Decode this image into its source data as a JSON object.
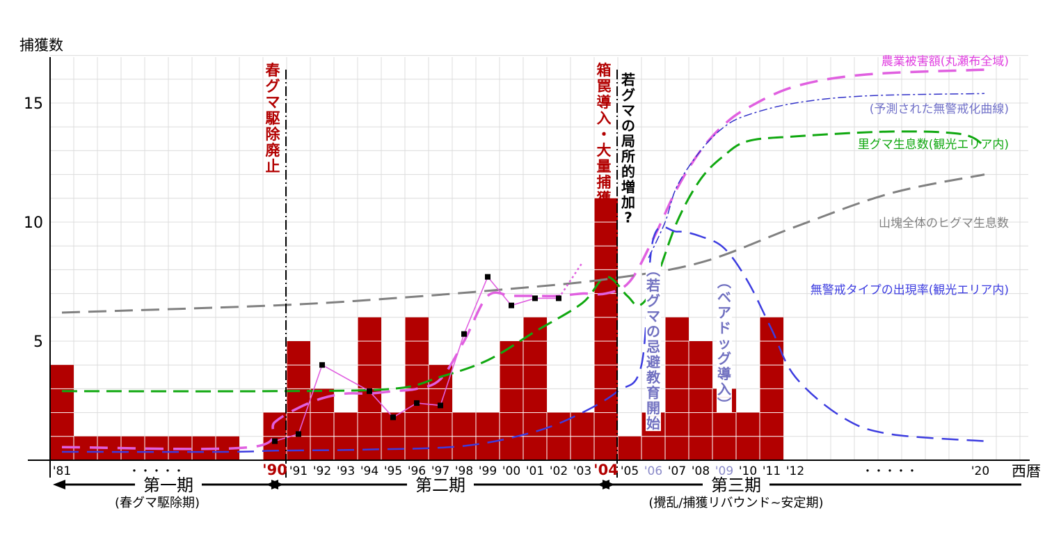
{
  "chart_data": {
    "type": "bar",
    "ylabel": "捕獲数",
    "xlabel": "西暦",
    "ylim": [
      0,
      17
    ],
    "yticks": [
      5,
      10,
      15
    ],
    "grid": true,
    "x": [
      1981,
      1982,
      1983,
      1984,
      1985,
      1986,
      1987,
      1988,
      1989,
      1990,
      1991,
      1992,
      1993,
      1994,
      1995,
      1996,
      1997,
      1998,
      1999,
      2000,
      2001,
      2002,
      2003,
      2004,
      2005,
      2006,
      2007,
      2008,
      2009,
      2010,
      2011
    ],
    "catches": [
      4,
      1,
      1,
      1,
      1,
      1,
      1,
      1,
      0,
      2,
      5,
      3,
      2,
      6,
      2,
      6,
      4,
      2,
      2,
      5,
      6,
      2,
      2,
      11,
      1,
      2,
      6,
      5,
      3,
      2,
      6
    ],
    "xtick_labels": [
      {
        "year": 1981,
        "label": "'81",
        "color": "#000000"
      },
      {
        "year": 1990,
        "label": "'90",
        "color": "#b20000"
      },
      {
        "year": 1991,
        "label": "'91",
        "color": "#000000"
      },
      {
        "year": 1992,
        "label": "'92",
        "color": "#000000"
      },
      {
        "year": 1993,
        "label": "'93",
        "color": "#000000"
      },
      {
        "year": 1994,
        "label": "'94",
        "color": "#000000"
      },
      {
        "year": 1995,
        "label": "'95",
        "color": "#000000"
      },
      {
        "year": 1996,
        "label": "'96",
        "color": "#000000"
      },
      {
        "year": 1997,
        "label": "'97",
        "color": "#000000"
      },
      {
        "year": 1998,
        "label": "'98",
        "color": "#000000"
      },
      {
        "year": 1999,
        "label": "'99",
        "color": "#000000"
      },
      {
        "year": 2000,
        "label": "'00",
        "color": "#000000"
      },
      {
        "year": 2001,
        "label": "'01",
        "color": "#000000"
      },
      {
        "year": 2002,
        "label": "'02",
        "color": "#000000"
      },
      {
        "year": 2003,
        "label": "'03",
        "color": "#000000"
      },
      {
        "year": 2004,
        "label": "'04",
        "color": "#b20000"
      },
      {
        "year": 2005,
        "label": "'05",
        "color": "#000000"
      },
      {
        "year": 2006,
        "label": "'06",
        "color": "#8a8ac8"
      },
      {
        "year": 2007,
        "label": "'07",
        "color": "#000000"
      },
      {
        "year": 2008,
        "label": "'08",
        "color": "#000000"
      },
      {
        "year": 2009,
        "label": "'09",
        "color": "#8a8ac8"
      },
      {
        "year": 2010,
        "label": "'10",
        "color": "#000000"
      },
      {
        "year": 2011,
        "label": "'11",
        "color": "#000000"
      },
      {
        "year": 2012,
        "label": "'12",
        "color": "#000000"
      },
      {
        "year": 2020,
        "label": "'20",
        "color": "#000000"
      }
    ],
    "ellipses": [
      {
        "year": 1985,
        "label": "・・・・・"
      },
      {
        "year": 2016,
        "label": "・・・・・"
      }
    ],
    "damage_observed": {
      "color": "#e060e0",
      "points": [
        [
          1990,
          0.8
        ],
        [
          1991,
          1.1
        ],
        [
          1992,
          4.0
        ],
        [
          1994,
          2.9
        ],
        [
          1995,
          1.8
        ],
        [
          1996,
          2.4
        ],
        [
          1997,
          2.3
        ],
        [
          1998,
          5.3
        ],
        [
          1999,
          7.7
        ],
        [
          2000,
          6.5
        ],
        [
          2001,
          6.8
        ],
        [
          2002,
          6.8
        ]
      ],
      "extension": [
        [
          2002,
          6.8
        ],
        [
          2003,
          8.3
        ]
      ]
    },
    "series": [
      {
        "name": "農業被害額(丸瀬布全域)",
        "color": "#e060e0",
        "width": 3.5,
        "dash": "26,14",
        "points": [
          [
            1981,
            0.55
          ],
          [
            1989,
            0.55
          ],
          [
            1990,
            1.6
          ],
          [
            1991,
            2.2
          ],
          [
            1992,
            2.6
          ],
          [
            1993,
            2.8
          ],
          [
            1994,
            2.8
          ],
          [
            1995,
            2.9
          ],
          [
            1996,
            3.0
          ],
          [
            1997,
            3.4
          ],
          [
            1998,
            5.0
          ],
          [
            1999,
            6.9
          ],
          [
            2000,
            6.9
          ],
          [
            2001,
            6.9
          ],
          [
            2002,
            6.9
          ],
          [
            2003,
            7.0
          ],
          [
            2004,
            7.0
          ],
          [
            2005,
            7.5
          ],
          [
            2006,
            9.3
          ],
          [
            2007,
            11.4
          ],
          [
            2008,
            13.0
          ],
          [
            2009,
            14.1
          ],
          [
            2010,
            14.8
          ],
          [
            2012,
            15.7
          ],
          [
            2015,
            16.2
          ],
          [
            2020,
            16.4
          ]
        ]
      },
      {
        "name": "(予測された無警戒化曲線)",
        "color": "#3030c8",
        "width": 1.5,
        "dash": "12,4,3,4",
        "points": [
          [
            2005.8,
            8.5
          ],
          [
            2006.5,
            10.0
          ],
          [
            2007,
            11.5
          ],
          [
            2008,
            13.0
          ],
          [
            2009,
            14.0
          ],
          [
            2010,
            14.5
          ],
          [
            2012,
            15.0
          ],
          [
            2015,
            15.3
          ],
          [
            2020,
            15.4
          ]
        ]
      },
      {
        "name": "里グマ生息数(観光エリア内)",
        "color": "#10a810",
        "width": 3,
        "dash": "22,10",
        "points": [
          [
            1981,
            2.9
          ],
          [
            1990,
            2.9
          ],
          [
            1995,
            3.0
          ],
          [
            1997,
            3.5
          ],
          [
            1999,
            4.2
          ],
          [
            2001,
            5.4
          ],
          [
            2003,
            6.6
          ],
          [
            2004,
            7.7
          ],
          [
            2004.9,
            6.9
          ],
          [
            2005.4,
            6.5
          ],
          [
            2006,
            7.3
          ],
          [
            2007,
            10.0
          ],
          [
            2008,
            11.8
          ],
          [
            2009,
            12.8
          ],
          [
            2010,
            13.4
          ],
          [
            2012,
            13.6
          ],
          [
            2016,
            13.8
          ],
          [
            2019,
            13.7
          ],
          [
            2020,
            13.2
          ]
        ]
      },
      {
        "name": "山塊全体のヒグマ生息数",
        "color": "#808080",
        "width": 3,
        "dash": "26,12",
        "points": [
          [
            1981,
            6.2
          ],
          [
            1990,
            6.5
          ],
          [
            1995,
            6.8
          ],
          [
            2000,
            7.2
          ],
          [
            2004,
            7.6
          ],
          [
            2008,
            8.3
          ],
          [
            2012,
            9.8
          ],
          [
            2016,
            11.2
          ],
          [
            2020,
            12.0
          ]
        ]
      },
      {
        "name": "無警戒タイプの出現率(観光エリア内)",
        "color": "#3c3ce0",
        "width": 2.5,
        "dash": "24,12",
        "points": [
          [
            1981,
            0.35
          ],
          [
            1988,
            0.35
          ],
          [
            1990,
            0.4
          ],
          [
            1994,
            0.45
          ],
          [
            1998,
            0.6
          ],
          [
            2001,
            1.2
          ],
          [
            2003,
            2.0
          ],
          [
            2004.5,
            2.9
          ],
          [
            2005.5,
            4.0
          ],
          [
            2006,
            9.3
          ],
          [
            2007,
            9.6
          ],
          [
            2008,
            9.4
          ],
          [
            2009,
            8.9
          ],
          [
            2010,
            7.5
          ],
          [
            2011,
            5.5
          ],
          [
            2012,
            3.5
          ],
          [
            2014,
            1.8
          ],
          [
            2016,
            1.1
          ],
          [
            2020,
            0.8
          ]
        ]
      }
    ],
    "series_labels": [
      {
        "text": "農業被害額(丸瀬布全域)",
        "color": "#e040e0",
        "y": 16.8
      },
      {
        "text": "(予測された無警戒化曲線)",
        "color": "#7070c8",
        "y": 14.8
      },
      {
        "text": "里グマ生息数(観光エリア内)",
        "color": "#10a810",
        "y": 13.3
      },
      {
        "text": "山塊全体のヒグマ生息数",
        "color": "#808080",
        "y": 10.0
      },
      {
        "text": "無警戒タイプの出現率(観光エリア内)",
        "color": "#3c3ce0",
        "y": 7.2
      }
    ],
    "events": [
      {
        "year": 1990,
        "text": "春グマ駆除廃止",
        "color": "#b20000"
      },
      {
        "year": 2004,
        "text": "箱罠導入・大量捕獲",
        "color": "#b20000"
      }
    ],
    "annotations": [
      {
        "year": 2005,
        "text": "若グマの局所的増加?",
        "color": "#000000",
        "y_top": 16.3
      },
      {
        "year": 2006,
        "text": "(若グマの忌避教育開始",
        "color": "#7070c0",
        "y_top": 8.3
      },
      {
        "year": 2009,
        "text": "(ベアドッグ導入)",
        "color": "#7070c0",
        "y_top": 7.8
      }
    ],
    "periods": [
      {
        "name": "第一期",
        "sub": "(春グマ駆除期)",
        "start": 1981,
        "end": 1990
      },
      {
        "name": "第二期",
        "sub": "",
        "start": 1990,
        "end": 2004
      },
      {
        "name": "第三期",
        "sub": "(攪乱/捕獲リバウンド~安定期)",
        "start": 2004,
        "end": 2020
      }
    ],
    "bar_color": "#b20000"
  }
}
